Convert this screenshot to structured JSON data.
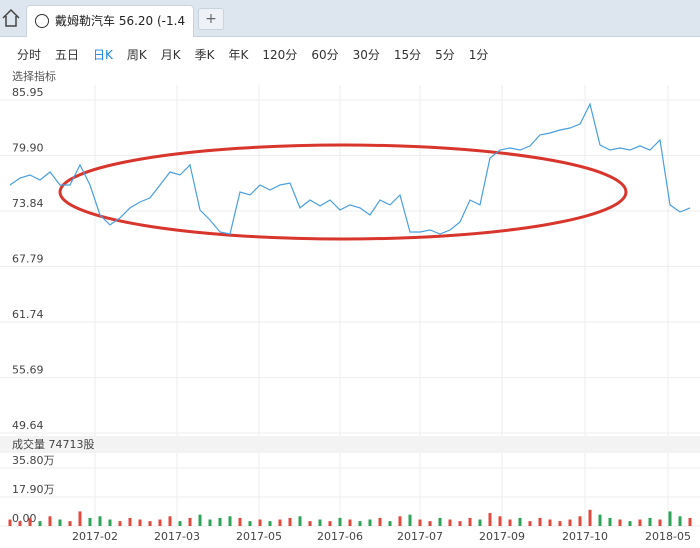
{
  "tab": {
    "title": "戴姆勒汽车 56.20 (-1.4"
  },
  "add_tab": "+",
  "periods": {
    "items": [
      "分时",
      "五日",
      "日K",
      "周K",
      "月K",
      "季K",
      "年K",
      "120分",
      "60分",
      "30分",
      "15分",
      "5分",
      "1分"
    ],
    "selected": 2
  },
  "indicator_label": "选择指标",
  "chart_data": {
    "type": "line",
    "color": "#4a9fe0",
    "grid": true,
    "x": [
      0,
      1,
      2,
      3,
      4,
      5,
      6,
      7,
      8,
      9,
      10,
      11,
      12,
      13,
      14,
      15,
      16,
      17,
      18,
      19,
      20,
      21,
      22,
      23,
      24,
      25,
      26,
      27,
      28,
      29,
      30,
      31,
      32,
      33,
      34,
      35,
      36,
      37,
      38,
      39,
      40,
      41,
      42,
      43,
      44,
      45,
      46,
      47,
      48,
      49,
      50,
      51,
      52,
      53,
      54,
      55,
      56,
      57,
      58,
      59,
      60,
      61,
      62,
      63,
      64,
      65,
      66,
      67,
      68
    ],
    "values": [
      76.68,
      77.45,
      77.77,
      77.23,
      78.1,
      76.68,
      76.68,
      78.87,
      76.68,
      73.41,
      72.33,
      73.09,
      74.18,
      74.83,
      75.27,
      76.68,
      78.1,
      77.77,
      78.87,
      73.96,
      72.87,
      71.56,
      71.34,
      75.92,
      75.59,
      76.68,
      76.14,
      76.68,
      76.9,
      74.18,
      75.05,
      74.4,
      75.05,
      73.96,
      74.51,
      74.18,
      73.41,
      75.05,
      74.51,
      75.59,
      71.56,
      71.56,
      71.78,
      71.34,
      71.78,
      72.65,
      75.05,
      74.51,
      79.63,
      80.5,
      80.72,
      80.5,
      80.94,
      82.14,
      82.35,
      82.68,
      82.9,
      83.33,
      85.5,
      81.04,
      80.5,
      80.72,
      80.5,
      80.94,
      80.5,
      81.59,
      74.51,
      73.74,
      74.18
    ],
    "xlim": [
      -1,
      69
    ],
    "ylim": [
      49.64,
      85.95
    ],
    "yticks": [
      85.95,
      {
        "value": 79.9,
        "label": "79.90"
      },
      73.84,
      67.79,
      61.74,
      55.69,
      49.64
    ],
    "xticks": [
      {
        "value": 8.5,
        "label": "2017-02"
      },
      {
        "value": 16.7,
        "label": "2017-03"
      },
      {
        "value": 24.9,
        "label": "2017-05"
      },
      {
        "value": 33,
        "label": "2017-06"
      },
      {
        "value": 41,
        "label": "2017-07"
      },
      {
        "value": 49.2,
        "label": "2017-09"
      },
      {
        "value": 57.5,
        "label": "2017-10"
      },
      {
        "value": 65.8,
        "label": "2018-05"
      }
    ],
    "volume": {
      "label": "成交量 74713股",
      "up_color": "#e04a3f",
      "down_color": "#2ea35a",
      "ylim": [
        0,
        35.8
      ],
      "yticks": [
        {
          "value": 0,
          "label": "0.00"
        },
        {
          "value": 17.9,
          "label": "17.90万"
        },
        {
          "value": 35.8,
          "label": "35.80万"
        }
      ],
      "values": [
        4,
        3,
        5,
        3,
        6,
        4,
        3,
        9,
        5,
        6,
        4,
        3,
        5,
        4,
        3,
        4,
        6,
        3,
        5,
        7,
        4,
        5,
        6,
        5,
        3,
        4,
        3,
        4,
        5,
        6,
        3,
        4,
        3,
        5,
        4,
        3,
        4,
        5,
        3,
        6,
        7,
        4,
        3,
        5,
        4,
        3,
        5,
        4,
        8,
        6,
        4,
        5,
        3,
        5,
        4,
        3,
        4,
        6,
        10,
        7,
        5,
        4,
        3,
        4,
        5,
        4,
        9,
        6,
        5
      ]
    }
  }
}
